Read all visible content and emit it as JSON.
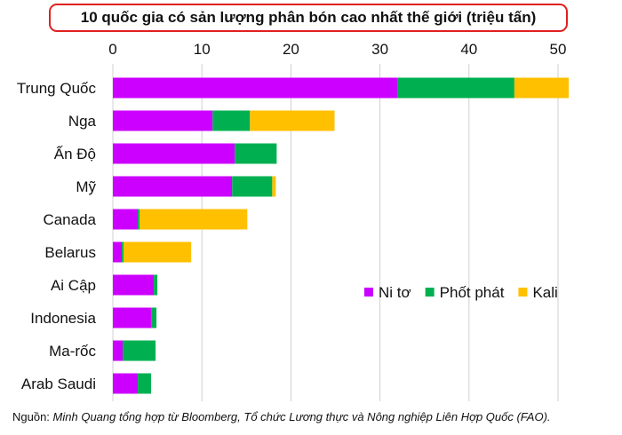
{
  "title": "10 quốc gia có sản lượng phân bón cao nhất thế giới (triệu tấn)",
  "source": {
    "label": "Nguồn:",
    "text": "Minh Quang tổng hợp từ Bloomberg, Tổ chức Lương thực và Nông nghiệp Liên Hợp Quốc (FAO)."
  },
  "chart_data": {
    "type": "bar",
    "orientation": "horizontal",
    "stacked": true,
    "title": "10 quốc gia có sản lượng phân bón cao nhất thế giới (triệu tấn)",
    "xlabel": "",
    "ylabel": "",
    "xlim": [
      0,
      52
    ],
    "xticks": [
      0,
      10,
      20,
      30,
      40,
      50
    ],
    "axis_position": "top",
    "grid": "vertical",
    "legend_position": "right-middle",
    "categories": [
      "Trung Quốc",
      "Nga",
      "Ấn Độ",
      "Mỹ",
      "Canada",
      "Belarus",
      "Ai Cập",
      "Indonesia",
      "Ma-rốc",
      "Arab Saudi"
    ],
    "series": [
      {
        "name": "Ni tơ",
        "color": "#cc00ff",
        "values": [
          32.0,
          11.2,
          13.7,
          13.4,
          2.8,
          1.0,
          4.6,
          4.3,
          1.1,
          2.8
        ]
      },
      {
        "name": "Phốt phát",
        "color": "#00b050",
        "values": [
          13.1,
          4.2,
          4.7,
          4.5,
          0.2,
          0.2,
          0.4,
          0.6,
          3.7,
          1.5
        ]
      },
      {
        "name": "Kali",
        "color": "#ffc000",
        "values": [
          6.1,
          9.5,
          0.0,
          0.4,
          12.1,
          7.6,
          0.0,
          0.0,
          0.0,
          0.0
        ]
      }
    ]
  }
}
